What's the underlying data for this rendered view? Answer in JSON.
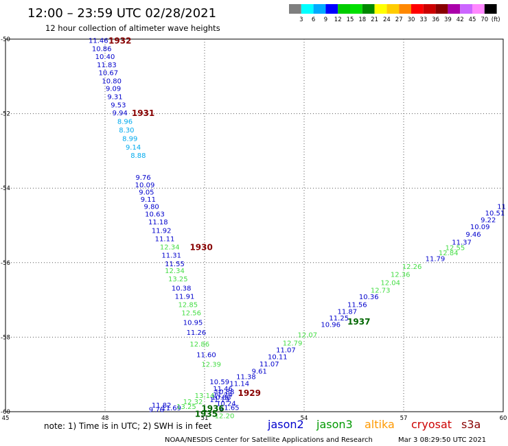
{
  "header": {
    "title": "12:00 – 23:59 UTC 02/28/2021",
    "subtitle": "12 hour collection of altimeter wave heights"
  },
  "legend": {
    "colors": [
      "#7f7f7f",
      "#00ffff",
      "#00aaff",
      "#0000ff",
      "#00cc00",
      "#00e000",
      "#008800",
      "#ffff00",
      "#ffcc00",
      "#ff8800",
      "#ff0000",
      "#cc0000",
      "#880000",
      "#aa00aa",
      "#cc66ff",
      "#ff88ff",
      "#000000"
    ],
    "labels": [
      "3",
      "6",
      "9",
      "12",
      "15",
      "18",
      "21",
      "24",
      "27",
      "30",
      "33",
      "36",
      "39",
      "42",
      "45",
      "70"
    ],
    "unit": "(ft)"
  },
  "footer": {
    "note": "note:  1) Time is in UTC;  2) SWH is in feet",
    "credit": "NOAA/NESDIS Center for Satellite Applications and Research",
    "timestamp": "Mar  3 08:29:50 UTC 2021"
  },
  "satellites": [
    {
      "name": "jason2",
      "color": "#0000cc"
    },
    {
      "name": "jason3",
      "color": "#009900"
    },
    {
      "name": "altika",
      "color": "#ff9900"
    },
    {
      "name": "cryosat",
      "color": "#cc0000"
    },
    {
      "name": "s3a",
      "color": "#880000"
    }
  ],
  "chart_data": {
    "type": "scatter",
    "xlim": [
      45,
      60
    ],
    "ylim": [
      -60,
      -50
    ],
    "x_ticks": [
      "45",
      "48",
      "51",
      "54",
      "57",
      "60"
    ],
    "y_ticks": [
      "-50",
      "-52",
      "-54",
      "-56",
      "-58",
      "-60"
    ],
    "grid": true,
    "series": [
      {
        "name": "jason2",
        "color": "#0000cc",
        "points": [
          {
            "x": 47.8,
            "y": -50.03,
            "label": "11.46"
          },
          {
            "x": 47.9,
            "y": -50.25,
            "label": "10.86"
          },
          {
            "x": 48.0,
            "y": -50.46,
            "label": "10.40"
          },
          {
            "x": 48.05,
            "y": -50.68,
            "label": "11.83"
          },
          {
            "x": 48.1,
            "y": -50.89,
            "label": "10.67"
          },
          {
            "x": 48.2,
            "y": -51.11,
            "label": "10.80"
          },
          {
            "x": 48.25,
            "y": -51.32,
            "label": "9.09"
          },
          {
            "x": 48.3,
            "y": -51.54,
            "label": "9.31"
          },
          {
            "x": 48.4,
            "y": -51.76,
            "label": "9.53"
          },
          {
            "x": 48.45,
            "y": -51.97,
            "label": "9.94"
          },
          {
            "x": 49.15,
            "y": -53.7,
            "label": "9.76"
          },
          {
            "x": 49.2,
            "y": -53.9,
            "label": "10.09"
          },
          {
            "x": 49.25,
            "y": -54.1,
            "label": "9.05"
          },
          {
            "x": 49.3,
            "y": -54.29,
            "label": "9.11"
          },
          {
            "x": 49.4,
            "y": -54.48,
            "label": "9.80"
          },
          {
            "x": 49.5,
            "y": -54.69,
            "label": "10.63"
          },
          {
            "x": 49.6,
            "y": -54.9,
            "label": "11.18"
          },
          {
            "x": 49.7,
            "y": -55.13,
            "label": "11.92"
          },
          {
            "x": 49.8,
            "y": -55.35,
            "label": "11.11"
          },
          {
            "x": 50.0,
            "y": -55.79,
            "label": "11.31"
          },
          {
            "x": 50.1,
            "y": -56.02,
            "label": "11.55"
          },
          {
            "x": 50.3,
            "y": -56.68,
            "label": "10.38"
          },
          {
            "x": 50.4,
            "y": -56.9,
            "label": "11.91"
          },
          {
            "x": 50.65,
            "y": -57.6,
            "label": "10.95"
          },
          {
            "x": 50.75,
            "y": -57.86,
            "label": "11.26"
          },
          {
            "x": 51.05,
            "y": -58.46,
            "label": "11.60"
          },
          {
            "x": 51.45,
            "y": -59.19,
            "label": "10.59"
          },
          {
            "x": 51.55,
            "y": -59.37,
            "label": "11.46"
          },
          {
            "x": 51.6,
            "y": -59.46,
            "label": "10.88"
          },
          {
            "x": 51.55,
            "y": -59.53,
            "label": "11.14"
          },
          {
            "x": 51.5,
            "y": -59.6,
            "label": "10.88"
          },
          {
            "x": 51.45,
            "y": -59.67,
            "label": "11.19"
          },
          {
            "x": 51.65,
            "y": -59.77,
            "label": "10.24"
          },
          {
            "x": 51.75,
            "y": -59.88,
            "label": "11.65"
          },
          {
            "x": 50.0,
            "y": -59.89,
            "label": "11.69"
          },
          {
            "x": 49.7,
            "y": -59.82,
            "label": "11.82"
          },
          {
            "x": 49.55,
            "y": -59.94,
            "label": "9.76"
          },
          {
            "x": 52.05,
            "y": -59.24,
            "label": "11.14"
          },
          {
            "x": 52.25,
            "y": -59.05,
            "label": "11.38"
          },
          {
            "x": 52.65,
            "y": -58.9,
            "label": "9.61"
          },
          {
            "x": 52.95,
            "y": -58.71,
            "label": "11.07"
          },
          {
            "x": 53.2,
            "y": -58.52,
            "label": "10.11"
          },
          {
            "x": 53.45,
            "y": -58.33,
            "label": "11.07"
          },
          {
            "x": 54.8,
            "y": -57.65,
            "label": "10.96"
          },
          {
            "x": 55.05,
            "y": -57.48,
            "label": "11.25"
          },
          {
            "x": 55.3,
            "y": -57.3,
            "label": "11.87"
          },
          {
            "x": 55.6,
            "y": -57.12,
            "label": "11.56"
          },
          {
            "x": 55.95,
            "y": -56.91,
            "label": "10.36"
          },
          {
            "x": 57.95,
            "y": -55.88,
            "label": "11.79"
          },
          {
            "x": 58.75,
            "y": -55.44,
            "label": "11.37"
          },
          {
            "x": 59.1,
            "y": -55.23,
            "label": "9.46"
          },
          {
            "x": 59.3,
            "y": -55.03,
            "label": "10.09"
          },
          {
            "x": 59.55,
            "y": -54.84,
            "label": "9.22"
          },
          {
            "x": 59.75,
            "y": -54.66,
            "label": "10.51"
          },
          {
            "x": 59.95,
            "y": -54.48,
            "label": "11"
          }
        ]
      },
      {
        "name": "jason2-light",
        "color": "#00aaee",
        "points": [
          {
            "x": 48.6,
            "y": -52.2,
            "label": "8.96"
          },
          {
            "x": 48.65,
            "y": -52.43,
            "label": "8.30"
          },
          {
            "x": 48.75,
            "y": -52.66,
            "label": "8.99"
          },
          {
            "x": 48.85,
            "y": -52.89,
            "label": "9.14"
          },
          {
            "x": 49.0,
            "y": -53.11,
            "label": "8.88"
          }
        ]
      },
      {
        "name": "jason3",
        "color": "#44dd44",
        "points": [
          {
            "x": 49.95,
            "y": -55.57,
            "label": "12.34"
          },
          {
            "x": 50.1,
            "y": -56.21,
            "label": "12.34"
          },
          {
            "x": 50.2,
            "y": -56.43,
            "label": "13.25"
          },
          {
            "x": 50.5,
            "y": -57.12,
            "label": "12.85"
          },
          {
            "x": 50.6,
            "y": -57.34,
            "label": "12.56"
          },
          {
            "x": 50.85,
            "y": -58.18,
            "label": "12.86"
          },
          {
            "x": 51.2,
            "y": -58.72,
            "label": "12.39"
          },
          {
            "x": 51.6,
            "y": -60.1,
            "label": "12.20"
          },
          {
            "x": 51.0,
            "y": -59.56,
            "label": "13.14"
          },
          {
            "x": 50.65,
            "y": -59.72,
            "label": "12.32"
          },
          {
            "x": 50.45,
            "y": -59.85,
            "label": "13.25"
          },
          {
            "x": 53.65,
            "y": -58.15,
            "label": "12.79"
          },
          {
            "x": 54.1,
            "y": -57.93,
            "label": "12.07"
          },
          {
            "x": 56.3,
            "y": -56.73,
            "label": "12.73"
          },
          {
            "x": 56.6,
            "y": -56.53,
            "label": "12.04"
          },
          {
            "x": 56.9,
            "y": -56.31,
            "label": "12.36"
          },
          {
            "x": 57.25,
            "y": -56.1,
            "label": "12.26"
          },
          {
            "x": 58.35,
            "y": -55.73,
            "label": "12.84"
          },
          {
            "x": 58.55,
            "y": -55.59,
            "label": "12.55"
          }
        ]
      }
    ],
    "hour_markers": [
      {
        "x": 48.45,
        "y": -50.03,
        "label": "1932",
        "color": "#880000"
      },
      {
        "x": 49.15,
        "y": -51.97,
        "label": "1931",
        "color": "#880000"
      },
      {
        "x": 50.9,
        "y": -55.57,
        "label": "1930",
        "color": "#880000"
      },
      {
        "x": 52.35,
        "y": -59.48,
        "label": "1929",
        "color": "#880000"
      },
      {
        "x": 55.65,
        "y": -57.57,
        "label": "1937",
        "color": "#006600"
      },
      {
        "x": 51.25,
        "y": -59.9,
        "label": "1936",
        "color": "#006600"
      },
      {
        "x": 51.05,
        "y": -60.05,
        "label": "1935",
        "color": "#006600"
      }
    ]
  }
}
